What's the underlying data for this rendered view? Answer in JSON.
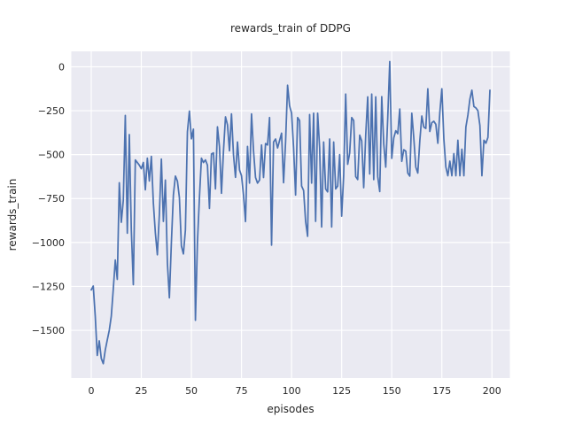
{
  "figure": {
    "background": "#ffffff",
    "axes_background": "#eaeaf2",
    "grid_color": "#ffffff",
    "text_color": "#262626"
  },
  "chart_data": {
    "type": "line",
    "title": "rewards_train of DDPG",
    "xlabel": "episodes",
    "ylabel": "rewards_train",
    "legend": "none",
    "grid": "on",
    "line_color": "#4c72b0",
    "line_width": 1.75,
    "xlim": [
      -9.95,
      208.95
    ],
    "ylim": [
      -1772,
      88
    ],
    "xticks": [
      0,
      25,
      50,
      75,
      100,
      125,
      150,
      175,
      200
    ],
    "xtick_labels": [
      "0",
      "25",
      "50",
      "75",
      "100",
      "125",
      "150",
      "175",
      "200"
    ],
    "yticks": [
      0,
      -250,
      -500,
      -750,
      -1000,
      -1250,
      -1500
    ],
    "ytick_labels": [
      "0",
      "−250",
      "−500",
      "−750",
      "−1000",
      "−1250",
      "−1500"
    ],
    "x_is_index": true,
    "x": "episodes 0..199",
    "values": [
      -1270,
      -1248,
      -1420,
      -1643,
      -1560,
      -1660,
      -1690,
      -1612,
      -1555,
      -1500,
      -1420,
      -1265,
      -1100,
      -1210,
      -660,
      -885,
      -760,
      -277,
      -947,
      -386,
      -930,
      -1240,
      -530,
      -545,
      -560,
      -580,
      -545,
      -700,
      -520,
      -650,
      -510,
      -775,
      -945,
      -1070,
      -840,
      -525,
      -880,
      -645,
      -1115,
      -1315,
      -1000,
      -730,
      -622,
      -650,
      -745,
      -1020,
      -1065,
      -930,
      -370,
      -252,
      -410,
      -355,
      -1443,
      -1000,
      -745,
      -520,
      -545,
      -530,
      -560,
      -806,
      -496,
      -490,
      -695,
      -342,
      -455,
      -720,
      -480,
      -285,
      -330,
      -478,
      -268,
      -500,
      -629,
      -428,
      -587,
      -620,
      -730,
      -881,
      -453,
      -662,
      -268,
      -478,
      -630,
      -662,
      -645,
      -445,
      -630,
      -437,
      -445,
      -289,
      -1015,
      -428,
      -411,
      -462,
      -420,
      -378,
      -660,
      -428,
      -105,
      -222,
      -264,
      -462,
      -730,
      -289,
      -306,
      -679,
      -704,
      -880,
      -965,
      -272,
      -662,
      -264,
      -880,
      -264,
      -462,
      -912,
      -428,
      -695,
      -712,
      -411,
      -912,
      -428,
      -695,
      -679,
      -500,
      -850,
      -620,
      -155,
      -555,
      -490,
      -289,
      -306,
      -625,
      -642,
      -389,
      -422,
      -688,
      -389,
      -171,
      -610,
      -155,
      -642,
      -171,
      -625,
      -710,
      -170,
      -439,
      -571,
      -289,
      30,
      -521,
      -405,
      -364,
      -381,
      -240,
      -538,
      -472,
      -480,
      -605,
      -622,
      -264,
      -405,
      -571,
      -605,
      -422,
      -280,
      -343,
      -351,
      -125,
      -368,
      -318,
      -310,
      -327,
      -435,
      -259,
      -125,
      -410,
      -570,
      -620,
      -537,
      -620,
      -494,
      -620,
      -418,
      -620,
      -469,
      -620,
      -343,
      -275,
      -184,
      -133,
      -226,
      -234,
      -250,
      -334,
      -620,
      -418,
      -435,
      -402,
      -133
    ]
  }
}
